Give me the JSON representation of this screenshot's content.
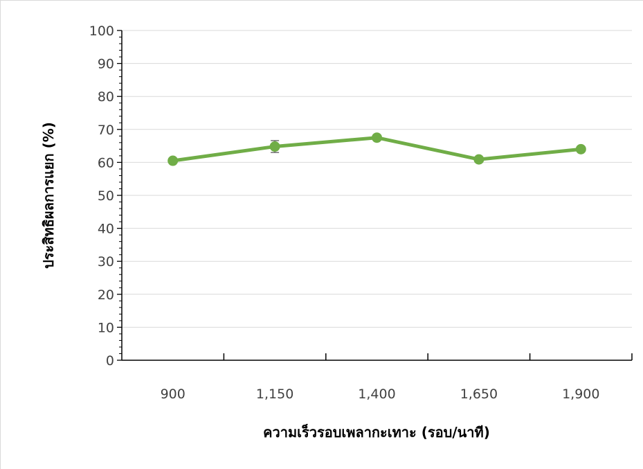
{
  "chart_data": {
    "type": "line",
    "title": "",
    "xlabel": "ความเร็วรอบเพลากะเทาะ (รอบ/นาที)",
    "ylabel": "ประสิทธิผลการแยก (%)",
    "categories": [
      "900",
      "1,150",
      "1,400",
      "1,650",
      "1,900"
    ],
    "series": [
      {
        "values": [
          60.5,
          64.8,
          67.5,
          60.9,
          64.0
        ],
        "error": [
          0,
          1.8,
          0,
          0,
          0
        ],
        "color": "#70ad47"
      }
    ],
    "ylim": [
      0,
      100
    ],
    "yticks": [
      "0",
      "10",
      "20",
      "30",
      "40",
      "50",
      "60",
      "70",
      "80",
      "90",
      "100"
    ],
    "grid": true,
    "legend": "none"
  }
}
